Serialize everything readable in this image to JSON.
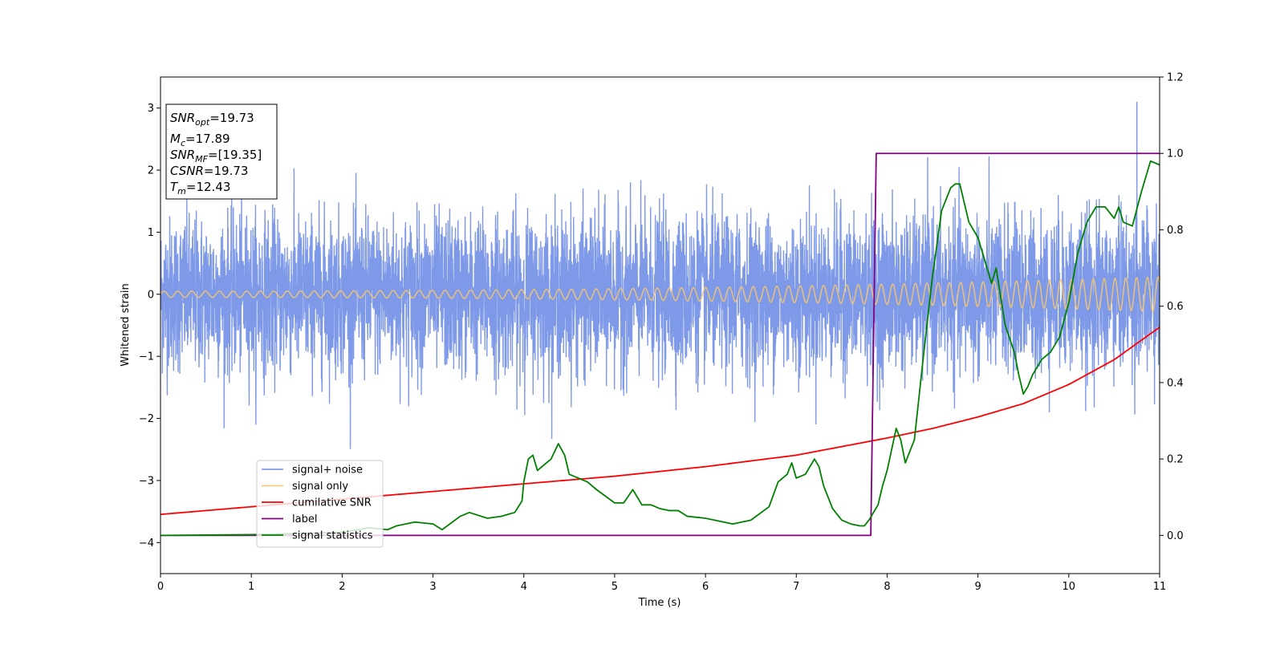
{
  "chart_data": {
    "type": "line",
    "xlabel": "Time (s)",
    "ylabel": "Whitened strain",
    "xlim": [
      0,
      11
    ],
    "ylim_left": [
      -4.5,
      3.5
    ],
    "ylim_right": [
      -0.1,
      1.2
    ],
    "x_ticks": [
      0,
      1,
      2,
      3,
      4,
      5,
      6,
      7,
      8,
      9,
      10,
      11
    ],
    "y_ticks_left": [
      -4,
      -3,
      -2,
      -1,
      0,
      1,
      2,
      3
    ],
    "y_ticks_right": [
      0.0,
      0.2,
      0.4,
      0.6,
      0.8,
      1.0,
      1.2
    ],
    "x_tick_labels": [
      "0",
      "1",
      "2",
      "3",
      "4",
      "5",
      "6",
      "7",
      "8",
      "9",
      "10",
      "11"
    ],
    "y_tick_labels_left": [
      "−4",
      "−3",
      "−2",
      "−1",
      "0",
      "1",
      "2",
      "3"
    ],
    "y_tick_labels_right": [
      "0.0",
      "0.2",
      "0.4",
      "0.6",
      "0.8",
      "1.0",
      "1.2"
    ],
    "grid": false,
    "legend_position": "lower-left",
    "annotation": {
      "snr_opt": {
        "sym": "SNR",
        "sub": "opt",
        "value": "=19.73"
      },
      "mc": {
        "sym": "M",
        "sub": "c",
        "value": "=17.89"
      },
      "snr_mf": {
        "sym": "SNR",
        "sub": "MF",
        "value": "=[19.35]"
      },
      "csnr": {
        "sym": "CSNR",
        "value": "=19.73"
      },
      "tm": {
        "sym": "T",
        "sub": "m",
        "value": "=12.43"
      }
    },
    "series": [
      {
        "name": "signal+ noise",
        "axis": "left",
        "color": "#7893e8",
        "description_values": "noise envelope approx ±1.3 with spikes to ±2.5, max 3.1 at t≈10.75"
      },
      {
        "name": "signal only",
        "axis": "left",
        "color": "#f5c56e",
        "amplitude_start": 0.05,
        "amplitude_end": 0.28
      },
      {
        "name": "cumilative SNR",
        "axis": "right",
        "color": "#ff0000",
        "x": [
          0,
          1,
          2,
          3,
          4,
          5,
          6,
          7,
          8,
          8.5,
          9,
          9.5,
          10,
          10.5,
          11
        ],
        "y": [
          0.055,
          0.075,
          0.095,
          0.115,
          0.135,
          0.155,
          0.18,
          0.21,
          0.255,
          0.28,
          0.31,
          0.345,
          0.395,
          0.46,
          0.545
        ]
      },
      {
        "name": "label",
        "axis": "right",
        "color": "#800080",
        "x": [
          0,
          7.82,
          7.88,
          11
        ],
        "y": [
          0,
          0,
          1,
          1
        ]
      },
      {
        "name": "signal statistics",
        "axis": "right",
        "color": "#008000",
        "x": [
          0,
          1,
          2,
          2.3,
          2.5,
          2.6,
          2.8,
          3.0,
          3.1,
          3.3,
          3.4,
          3.6,
          3.75,
          3.9,
          3.98,
          4.0,
          4.05,
          4.1,
          4.15,
          4.2,
          4.3,
          4.38,
          4.45,
          4.5,
          4.6,
          4.7,
          4.8,
          5.0,
          5.1,
          5.2,
          5.3,
          5.4,
          5.5,
          5.6,
          5.7,
          5.8,
          6.0,
          6.1,
          6.3,
          6.5,
          6.7,
          6.8,
          6.9,
          6.95,
          7.0,
          7.1,
          7.2,
          7.25,
          7.3,
          7.4,
          7.5,
          7.6,
          7.7,
          7.75,
          7.8,
          7.9,
          7.95,
          8.0,
          8.1,
          8.15,
          8.2,
          8.3,
          8.4,
          8.5,
          8.6,
          8.7,
          8.75,
          8.8,
          8.9,
          9.0,
          9.1,
          9.15,
          9.2,
          9.3,
          9.4,
          9.45,
          9.5,
          9.55,
          9.6,
          9.7,
          9.8,
          9.9,
          10.0,
          10.1,
          10.2,
          10.3,
          10.4,
          10.5,
          10.55,
          10.6,
          10.7,
          10.8,
          10.9,
          11.0
        ],
        "y": [
          0,
          0.002,
          0.008,
          0.02,
          0.015,
          0.025,
          0.035,
          0.03,
          0.015,
          0.05,
          0.06,
          0.045,
          0.05,
          0.06,
          0.09,
          0.14,
          0.2,
          0.21,
          0.17,
          0.18,
          0.2,
          0.24,
          0.21,
          0.16,
          0.15,
          0.14,
          0.12,
          0.085,
          0.085,
          0.12,
          0.08,
          0.08,
          0.07,
          0.065,
          0.065,
          0.05,
          0.045,
          0.04,
          0.03,
          0.04,
          0.075,
          0.14,
          0.16,
          0.19,
          0.15,
          0.16,
          0.2,
          0.18,
          0.13,
          0.07,
          0.04,
          0.03,
          0.025,
          0.025,
          0.04,
          0.08,
          0.13,
          0.17,
          0.28,
          0.25,
          0.19,
          0.25,
          0.47,
          0.68,
          0.85,
          0.91,
          0.92,
          0.92,
          0.82,
          0.78,
          0.7,
          0.66,
          0.7,
          0.55,
          0.48,
          0.42,
          0.37,
          0.39,
          0.42,
          0.46,
          0.48,
          0.52,
          0.61,
          0.74,
          0.82,
          0.86,
          0.86,
          0.83,
          0.86,
          0.82,
          0.81,
          0.9,
          0.98,
          0.97
        ]
      }
    ]
  }
}
